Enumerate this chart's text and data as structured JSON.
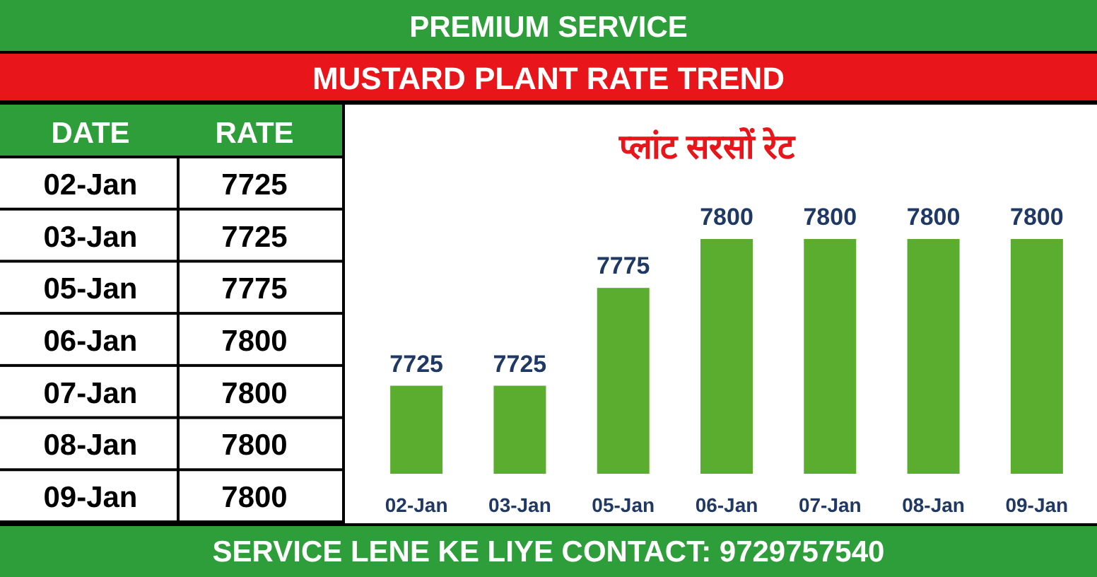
{
  "chart_data": [
    {
      "type": "other",
      "data_labels": true,
      "annotations": [
        "DATE",
        "RATE"
      ],
      "categories": [
        "02-Jan",
        "03-Jan",
        "05-Jan",
        "06-Jan",
        "07-Jan",
        "08-Jan",
        "09-Jan"
      ],
      "values": [
        7725,
        7725,
        7775,
        7800,
        7800,
        7800,
        7800
      ]
    },
    {
      "type": "bar",
      "title": "MUSTARD PLANT RATE TREND",
      "subtitle": "प्लांट सरसों रेट",
      "annotations": [
        "PREMIUM SERVICE",
        "SERVICE LENE KE LIYE CONTACT: 9729757540"
      ],
      "categories": [
        "02-Jan",
        "03-Jan",
        "05-Jan",
        "06-Jan",
        "07-Jan",
        "08-Jan",
        "09-Jan"
      ],
      "values": [
        7725,
        7725,
        7775,
        7800,
        7800,
        7800,
        7800
      ],
      "color": "#5aad2e",
      "ylim": [
        7680,
        7800
      ],
      "data_labels": true
    }
  ]
}
